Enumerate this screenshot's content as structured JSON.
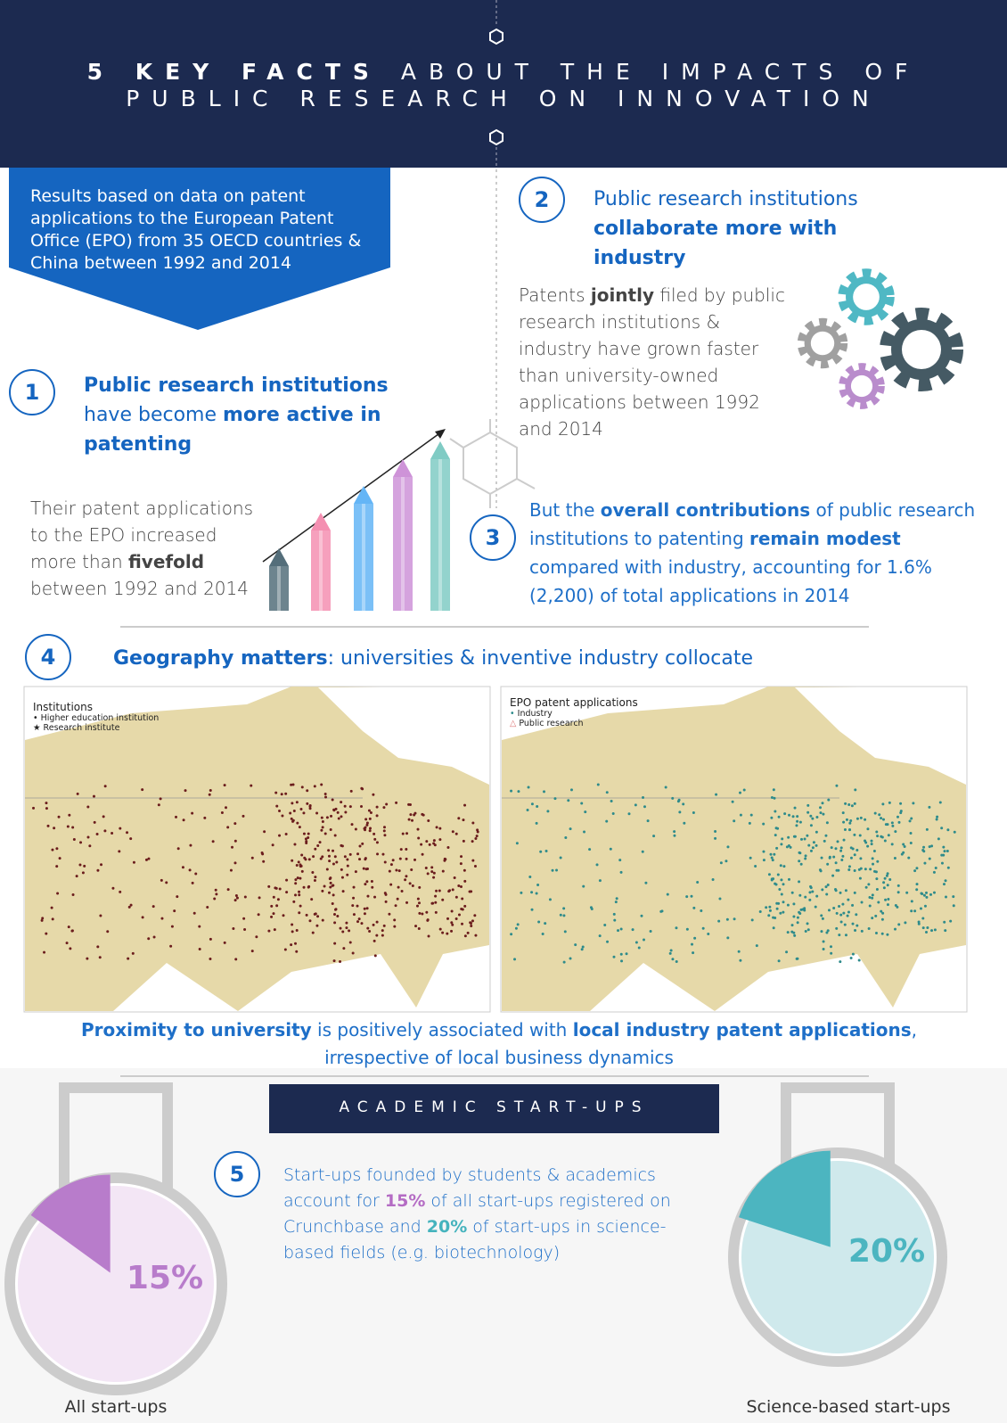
{
  "header": {
    "title_bold": "5 KEY FACTS",
    "title_rest": "ABOUT THE IMPACTS OF",
    "title_line2": "PUBLIC RESEARCH ON INNOVATION"
  },
  "intro": "Results based on data on patent applications to the European Patent Office (EPO) from 35 OECD countries & China between 1992 and 2014",
  "facts": [
    {
      "number": "1",
      "heading": [
        {
          "text": "Public research institutions",
          "bold": true
        },
        {
          "text": " have become ",
          "bold": false
        },
        {
          "text": "more active in patenting",
          "bold": true
        }
      ],
      "body": [
        {
          "text": "Their patent applications to the EPO increased more than ",
          "bold": false
        },
        {
          "text": "fivefold",
          "bold": true
        },
        {
          "text": " between 1992 and 2014",
          "bold": false
        }
      ]
    },
    {
      "number": "2",
      "heading": [
        {
          "text": "Public research institutions ",
          "bold": false
        },
        {
          "text": "collaborate more with industry",
          "bold": true
        }
      ],
      "body": [
        {
          "text": "Patents ",
          "bold": false
        },
        {
          "text": "jointly",
          "bold": true
        },
        {
          "text": " filed by public research institutions & industry have grown faster than university-owned applications between 1992 and 2014",
          "bold": false
        }
      ]
    },
    {
      "number": "3",
      "body": [
        {
          "text": "But the ",
          "bold": false
        },
        {
          "text": "overall contributions",
          "bold": true
        },
        {
          "text": " of public research institutions to patenting ",
          "bold": false
        },
        {
          "text": "remain modest",
          "bold": true
        },
        {
          "text": " compared with industry, accounting for 1.6% (2,200) of total applications in 2014",
          "bold": false
        }
      ]
    },
    {
      "number": "4",
      "heading": [
        {
          "text": "Geography matters",
          "bold": true
        },
        {
          "text": ": universities & inventive industry collocate",
          "bold": false
        }
      ],
      "body": [
        {
          "text": "Proximity to university",
          "bold": true
        },
        {
          "text": " is positively associated with ",
          "bold": false
        },
        {
          "text": "local industry patent applications",
          "bold": true
        },
        {
          "text": ", irrespective of local business dynamics",
          "bold": false
        }
      ]
    },
    {
      "number": "5",
      "body": [
        {
          "text": "Start-ups founded by students & academics account for ",
          "bold": false
        },
        {
          "text": "15%",
          "bold": true,
          "color": "#b46cc4"
        },
        {
          "text": " of all start-ups registered on Crunchbase and ",
          "bold": false
        },
        {
          "text": "20%",
          "bold": true,
          "color": "#45b3bd"
        },
        {
          "text": " of start-ups in science-based fields (e.g. biotechnology)",
          "bold": false
        }
      ]
    }
  ],
  "maps": [
    {
      "title": "Institutions",
      "legend": [
        "Higher education institution",
        "Research institute"
      ]
    },
    {
      "title": "EPO patent applications",
      "legend": [
        "Industry",
        "Public research"
      ]
    }
  ],
  "section_label": "ACADEMIC START-UPS",
  "pies": [
    {
      "value": 15,
      "value_label": "15%",
      "label": "All start-ups",
      "color": "#b87ccb",
      "base_color": "#f3e6f5"
    },
    {
      "value": 20,
      "value_label": "20%",
      "label": "Science-based start-ups",
      "color": "#4cb5c0",
      "base_color": "#cfe9ec"
    }
  ]
}
